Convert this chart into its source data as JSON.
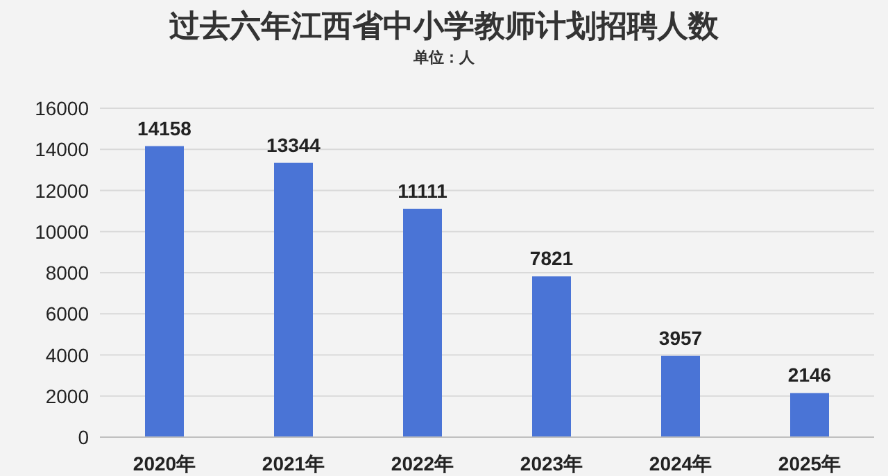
{
  "chart_data": {
    "type": "bar",
    "title": "过去六年江西省中小学教师计划招聘人数",
    "subtitle": "单位：人",
    "categories": [
      "2020年",
      "2021年",
      "2022年",
      "2023年",
      "2024年",
      "2025年"
    ],
    "values": [
      14158,
      13344,
      11111,
      7821,
      3957,
      2146
    ],
    "color": "#4a74d6",
    "ylim": [
      0,
      16000
    ],
    "yticks": [
      0,
      2000,
      4000,
      6000,
      8000,
      10000,
      12000,
      14000,
      16000
    ],
    "grid": "y",
    "data_labels": true
  }
}
